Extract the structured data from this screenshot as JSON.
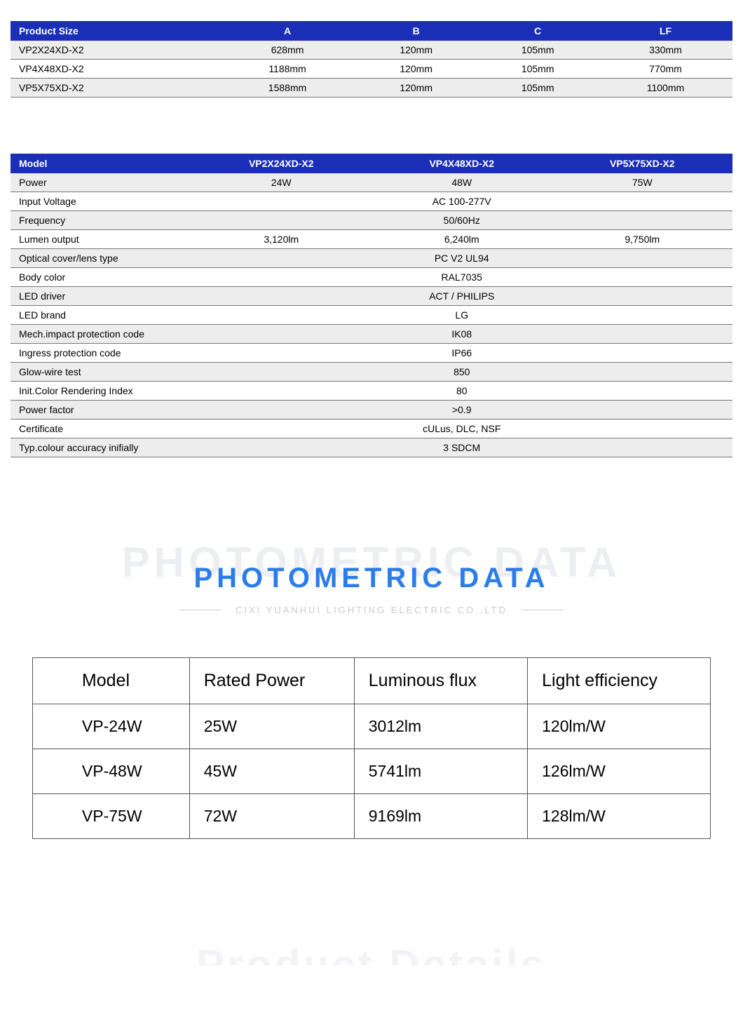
{
  "colors": {
    "header_bg": "#1a2fb5",
    "header_text": "#ffffff",
    "row_odd_bg": "#ededed",
    "row_even_bg": "#ffffff",
    "border": "#777777",
    "title_ghost": "#eceef2",
    "title_main": "#2b7de9",
    "subtitle": "#cccccc",
    "photometric_border": "#555555"
  },
  "table1": {
    "headers": [
      "Product Size",
      "A",
      "B",
      "C",
      "LF"
    ],
    "rows": [
      [
        "VP2X24XD-X2",
        "628mm",
        "120mm",
        "105mm",
        "330mm"
      ],
      [
        "VP4X48XD-X2",
        "1188mm",
        "120mm",
        "105mm",
        "770mm"
      ],
      [
        "VP5X75XD-X2",
        "1588mm",
        "120mm",
        "105mm",
        "1100mm"
      ]
    ]
  },
  "table2": {
    "headers": [
      "Model",
      "VP2X24XD-X2",
      "VP4X48XD-X2",
      "VP5X75XD-X2"
    ],
    "rows": [
      {
        "label": "Power",
        "cells": [
          "24W",
          "48W",
          "75W"
        ],
        "span": false
      },
      {
        "label": "Input Voltage",
        "cells": [
          "AC 100-277V"
        ],
        "span": true
      },
      {
        "label": "Frequency",
        "cells": [
          "50/60Hz"
        ],
        "span": true
      },
      {
        "label": "Lumen output",
        "cells": [
          "3,120lm",
          "6,240lm",
          "9,750lm"
        ],
        "span": false
      },
      {
        "label": "Optical cover/lens type",
        "cells": [
          "PC V2 UL94"
        ],
        "span": true
      },
      {
        "label": "Body color",
        "cells": [
          "RAL7035"
        ],
        "span": true
      },
      {
        "label": "LED driver",
        "cells": [
          "ACT / PHILIPS"
        ],
        "span": true
      },
      {
        "label": "LED brand",
        "cells": [
          "LG"
        ],
        "span": true
      },
      {
        "label": "Mech.impact protection code",
        "cells": [
          "IK08"
        ],
        "span": true
      },
      {
        "label": "Ingress protection code",
        "cells": [
          "IP66"
        ],
        "span": true
      },
      {
        "label": "Glow-wire test",
        "cells": [
          "850"
        ],
        "span": true
      },
      {
        "label": "Init.Color Rendering Index",
        "cells": [
          "80"
        ],
        "span": true
      },
      {
        "label": "Power factor",
        "cells": [
          ">0.9"
        ],
        "span": true
      },
      {
        "label": "Certificate",
        "cells": [
          "cULus, DLC, NSF"
        ],
        "span": true
      },
      {
        "label": "Typ.colour accuracy inifially",
        "cells": [
          "3 SDCM"
        ],
        "span": true
      }
    ]
  },
  "section": {
    "ghost": "PHOTOMETRIC DATA",
    "main": "PHOTOMETRIC DATA",
    "subtitle": "CIXI YUANHUI LIGHTING ELECTRIC  CO.,LTD"
  },
  "photometric": {
    "headers": [
      "Model",
      "Rated Power",
      "Luminous flux",
      "Light efficiency"
    ],
    "rows": [
      [
        "VP-24W",
        "25W",
        "3012lm",
        "120lm/W"
      ],
      [
        "VP-48W",
        "45W",
        "5741lm",
        "126lm/W"
      ],
      [
        "VP-75W",
        "72W",
        "9169lm",
        "128lm/W"
      ]
    ]
  },
  "footer_ghost": "Product Details"
}
